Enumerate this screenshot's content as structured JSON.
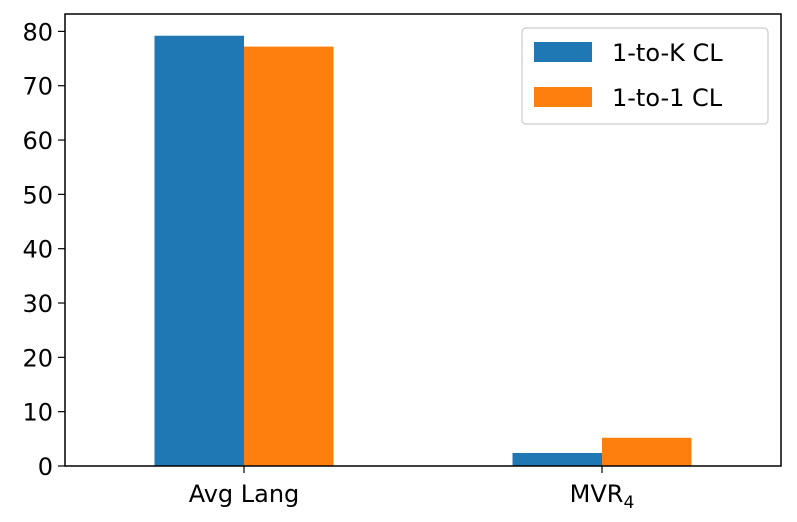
{
  "chart_data": {
    "type": "bar",
    "title": "",
    "xlabel": "",
    "ylabel": "",
    "categories": [
      {
        "base": "Avg Lang",
        "sub": ""
      },
      {
        "base": "MVR",
        "sub": "4"
      }
    ],
    "series": [
      {
        "name": "1-to-K CL",
        "color": "#1f77b4",
        "values": [
          79.2,
          2.4
        ]
      },
      {
        "name": "1-to-1 CL",
        "color": "#ff7f0e",
        "values": [
          77.2,
          5.2
        ]
      }
    ],
    "ylim": [
      0,
      83.2
    ],
    "yticks": [
      0,
      10,
      20,
      30,
      40,
      50,
      60,
      70,
      80
    ],
    "grid": false,
    "legend": "top-right"
  }
}
